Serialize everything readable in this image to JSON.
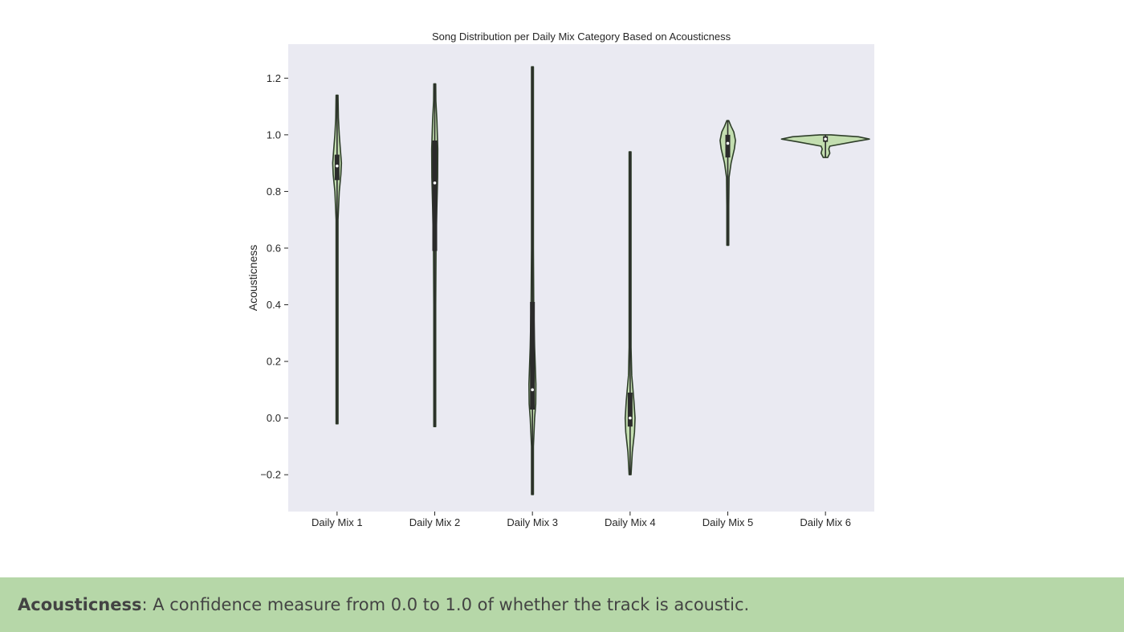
{
  "chart_data": {
    "type": "violin",
    "title": "Song Distribution per Daily Mix Category Based on Acousticness",
    "xlabel": "",
    "ylabel": "Acousticness",
    "ylim": [
      -0.33,
      1.32
    ],
    "yticks": [
      -0.2,
      0.0,
      0.2,
      0.4,
      0.6,
      0.8,
      1.0,
      1.2
    ],
    "ytick_labels": [
      "−0.2",
      "0.0",
      "0.2",
      "0.4",
      "0.6",
      "0.8",
      "1.0",
      "1.2"
    ],
    "categories": [
      "Daily Mix 1",
      "Daily Mix 2",
      "Daily Mix 3",
      "Daily Mix 4",
      "Daily Mix 5",
      "Daily Mix 6"
    ],
    "grid": false,
    "colors": {
      "plot_background": "#eaeaf2",
      "violin_fill": "#c3deb0",
      "violin_edge": "#2f3f2a",
      "box": "#2b2b2b",
      "median": "#ffffff"
    },
    "violins": [
      {
        "category": "Daily Mix 1",
        "min": -0.02,
        "max": 1.14,
        "q1": 0.84,
        "median": 0.89,
        "q3": 0.93,
        "profile": [
          [
            -0.02,
            0.002
          ],
          [
            0.5,
            0.002
          ],
          [
            0.7,
            0.008
          ],
          [
            0.8,
            0.02
          ],
          [
            0.86,
            0.035
          ],
          [
            0.9,
            0.04
          ],
          [
            0.95,
            0.03
          ],
          [
            1.0,
            0.02
          ],
          [
            1.06,
            0.012
          ],
          [
            1.14,
            0.002
          ]
        ]
      },
      {
        "category": "Daily Mix 2",
        "min": -0.03,
        "max": 1.18,
        "q1": 0.59,
        "median": 0.83,
        "q3": 0.98,
        "profile": [
          [
            -0.03,
            0.002
          ],
          [
            0.4,
            0.003
          ],
          [
            0.6,
            0.012
          ],
          [
            0.75,
            0.02
          ],
          [
            0.85,
            0.026
          ],
          [
            0.95,
            0.028
          ],
          [
            1.05,
            0.02
          ],
          [
            1.12,
            0.01
          ],
          [
            1.18,
            0.002
          ]
        ]
      },
      {
        "category": "Daily Mix 3",
        "min": -0.27,
        "max": 1.24,
        "q1": 0.03,
        "median": 0.1,
        "q3": 0.41,
        "profile": [
          [
            -0.27,
            0.002
          ],
          [
            -0.1,
            0.006
          ],
          [
            0.0,
            0.02
          ],
          [
            0.05,
            0.03
          ],
          [
            0.12,
            0.032
          ],
          [
            0.25,
            0.02
          ],
          [
            0.4,
            0.012
          ],
          [
            0.6,
            0.005
          ],
          [
            0.9,
            0.003
          ],
          [
            1.24,
            0.002
          ]
        ]
      },
      {
        "category": "Daily Mix 4",
        "min": -0.2,
        "max": 0.94,
        "q1": -0.03,
        "median": 0.0,
        "q3": 0.09,
        "profile": [
          [
            -0.2,
            0.002
          ],
          [
            -0.12,
            0.02
          ],
          [
            -0.05,
            0.04
          ],
          [
            0.0,
            0.045
          ],
          [
            0.06,
            0.035
          ],
          [
            0.15,
            0.015
          ],
          [
            0.25,
            0.006
          ],
          [
            0.5,
            0.003
          ],
          [
            0.94,
            0.002
          ]
        ]
      },
      {
        "category": "Daily Mix 5",
        "min": 0.61,
        "max": 1.05,
        "q1": 0.92,
        "median": 0.97,
        "q3": 1.0,
        "profile": [
          [
            0.61,
            0.002
          ],
          [
            0.75,
            0.004
          ],
          [
            0.85,
            0.012
          ],
          [
            0.9,
            0.03
          ],
          [
            0.95,
            0.06
          ],
          [
            0.98,
            0.07
          ],
          [
            1.01,
            0.055
          ],
          [
            1.03,
            0.03
          ],
          [
            1.05,
            0.005
          ]
        ]
      },
      {
        "category": "Daily Mix 6",
        "min": 0.92,
        "max": 1.0,
        "q1": 0.975,
        "median": 0.985,
        "q3": 0.995,
        "profile": [
          [
            0.92,
            0.02
          ],
          [
            0.935,
            0.04
          ],
          [
            0.95,
            0.03
          ],
          [
            0.96,
            0.04
          ],
          [
            0.975,
            0.25
          ],
          [
            0.985,
            0.4
          ],
          [
            0.993,
            0.3
          ],
          [
            1.0,
            0.05
          ]
        ]
      }
    ]
  },
  "caption": {
    "term": "Acousticness",
    "definition": ": A confidence measure from 0.0 to 1.0 of whether the track is acoustic."
  }
}
